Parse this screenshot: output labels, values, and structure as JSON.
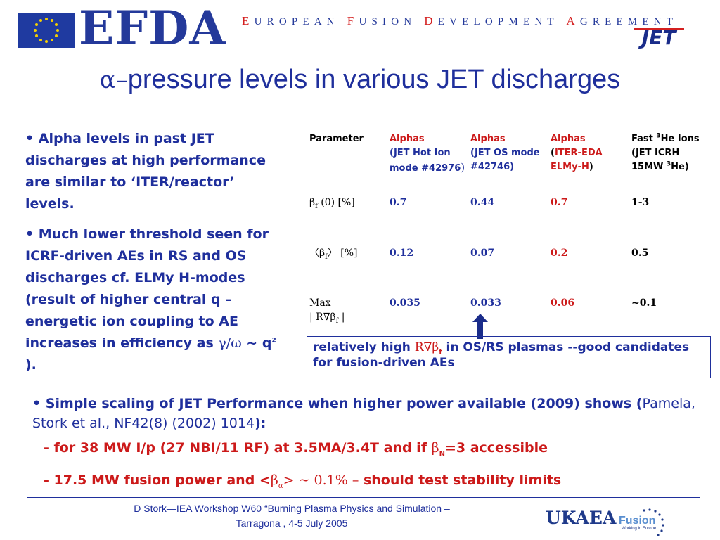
{
  "header": {
    "efda_logo": "EFDA",
    "efda_full": [
      {
        "initial": "E",
        "rest": "UROPEAN "
      },
      {
        "initial": "F",
        "rest": "USION "
      },
      {
        "initial": "D",
        "rest": "EVELOPMENT "
      },
      {
        "initial": "A",
        "rest": "GREEMENT"
      }
    ],
    "jet_logo": "JET"
  },
  "title": {
    "greek": "α–",
    "text": "pressure levels in various JET discharges"
  },
  "left_bullets": {
    "b1": "• Alpha levels in past JET discharges at high performance are similar to ‘ITER/reactor’ levels.",
    "b2_pre": "• Much lower threshold seen for ICRF-driven AEs in RS and OS discharges cf.  ELMy H-modes (result of higher central q – energetic ion coupling to AE increases in efficiency as ",
    "b2_greek": "γ/ω",
    "b2_post": " ~ q",
    "b2_sup": "2",
    "b2_end": " )."
  },
  "table": {
    "header": {
      "c1": "Parameter",
      "c2_a": "Alphas",
      "c2_b": " (JET Hot Ion mode #42976",
      "c2_c": ")",
      "c3_a": "Alphas",
      "c3_b": "(JET OS mode #42746)",
      "c4_a": "Alphas",
      "c4_b1": "(",
      "c4_b2": "ITER-EDA ELMy-H",
      "c4_b3": ")",
      "c5_a": "Fast ",
      "c5_sup1": "3",
      "c5_b": "He Ions (JET ICRH 15MW ",
      "c5_sup2": "3",
      "c5_c": "He)"
    },
    "row1": {
      "label": "β",
      "label_sub": "f",
      "label_rest": " (0) [%]",
      "v2": "0.7",
      "v3": "0.44",
      "v4": "0.7",
      "v5": "1-3"
    },
    "row2": {
      "label": "〈β",
      "label_sub": "f",
      "label_rest": "〉 [%]",
      "v2": "0.12",
      "v3": "0.07",
      "v4": "0.2",
      "v5": "0.5"
    },
    "row3": {
      "label_a": "Max",
      "label_b": "| R∇β",
      "label_sub": "f",
      "label_c": " |",
      "v2": "0.035",
      "v3": "0.033",
      "v4": "0.06",
      "v5": "~0.1"
    }
  },
  "callout": {
    "pre": "relatively high ",
    "greek": "R∇β",
    "sub": "f",
    "post": " in OS/RS plasmas --good candidates for fusion-driven AEs"
  },
  "bottom": {
    "b1_bold": "• Simple scaling of JET Performance when higher power available (2009) shows (",
    "b1_normal": "Pamela, Stork et al., NF42(8) (2002) 1014",
    "b1_end": "):",
    "line1_pre": "- for 38 MW I/p (27 NBI/11 RF) at 3.5MA/3.4T and if ",
    "line1_greek": "β",
    "line1_sub": "N",
    "line1_post": "=3 accessible",
    "line2_pre": "- 17.5 MW fusion power and <",
    "line2_greek": "β",
    "line2_sub": "α",
    "line2_mid": "> ~ 0.1% –",
    "line2_post": " should test stability limits"
  },
  "footer": {
    "line1": "D Stork—IEA Workshop W60 “Burning Plasma Physics and Simulation –",
    "line2": "Tarragona , 4-5 July 2005",
    "ukaea": "UKAEA",
    "fusion": "Fusion",
    "fusion_sub": "Working in Europe"
  },
  "colors": {
    "accent_blue": "#1f2f9c",
    "accent_red": "#cc1a1a",
    "eu_blue": "#1f3aa0"
  }
}
